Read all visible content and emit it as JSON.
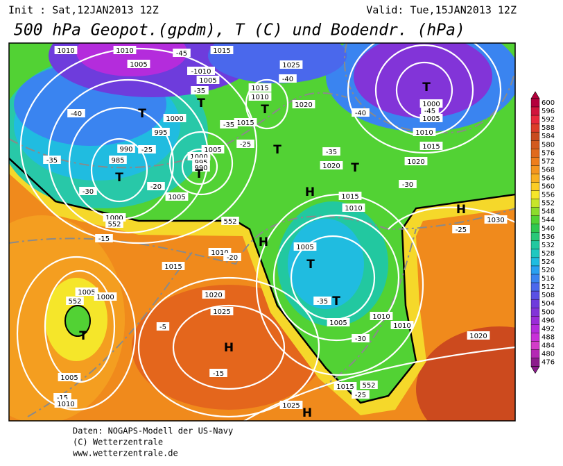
{
  "header": {
    "init": "Init : Sat,12JAN2013 12Z",
    "valid": "Valid: Tue,15JAN2013 12Z",
    "title": "500 hPa Geopot.(gpdm), T (C) und Bodendr. (hPa)"
  },
  "colorbar": {
    "levels": [
      600,
      596,
      592,
      588,
      584,
      580,
      576,
      572,
      568,
      564,
      560,
      556,
      552,
      548,
      544,
      540,
      536,
      532,
      528,
      524,
      520,
      516,
      512,
      508,
      504,
      500,
      496,
      492,
      488,
      484,
      480,
      476
    ],
    "colors": [
      "#b4003c",
      "#d0143c",
      "#e8283c",
      "#dc3c28",
      "#c84a1e",
      "#d25a1e",
      "#e06a1c",
      "#ee7e1c",
      "#f49620",
      "#f8b022",
      "#fbcd26",
      "#f5e62a",
      "#c8e62a",
      "#8cdc2c",
      "#52d234",
      "#2ec850",
      "#28c878",
      "#22c8a0",
      "#20c8c0",
      "#20bce0",
      "#2aa0f0",
      "#3a84f0",
      "#4a68ec",
      "#5a50e4",
      "#6e3cdc",
      "#8234d8",
      "#9a2cd8",
      "#b42cdc",
      "#c830d8",
      "#d23cc8",
      "#b428b4",
      "#8c1c8c"
    ]
  },
  "map": {
    "labels": [
      "1010",
      "1010",
      "1005",
      "-45",
      "1015",
      "-40",
      "-1010",
      "1005",
      "-35",
      "T",
      "T",
      "1000",
      "995",
      "-25",
      "990",
      "985",
      "T",
      "1005",
      "1000",
      "995",
      "990",
      "T",
      "-20",
      "1005",
      "-30",
      "-35",
      "1000",
      "552",
      "552",
      "-15",
      "1010",
      "-20",
      "1015",
      "H",
      "1005",
      "1000",
      "552",
      "T",
      "-5",
      "1020",
      "1025",
      "H",
      "-15",
      "1005",
      "-15",
      "1010",
      "1025",
      "H",
      "1015",
      "1005",
      "-30",
      "1010",
      "1010",
      "552",
      "-25",
      "-35",
      "T",
      "T",
      "1005",
      "1010",
      "1015",
      "H",
      "1020",
      "T",
      "-35",
      "T",
      "-25",
      "1015",
      "-35",
      "1015",
      "1010",
      "T",
      "1020",
      "-40",
      "1025",
      "-40",
      "1000",
      "-45",
      "1005",
      "1010",
      "1015",
      "T",
      "1020",
      "-30",
      "H",
      "1030",
      "-25",
      "1020"
    ]
  },
  "footer": [
    "Daten: NOGAPS-Modell der US-Navy",
    "(C) Wetterzentrale",
    "www.wetterzentrale.de"
  ]
}
